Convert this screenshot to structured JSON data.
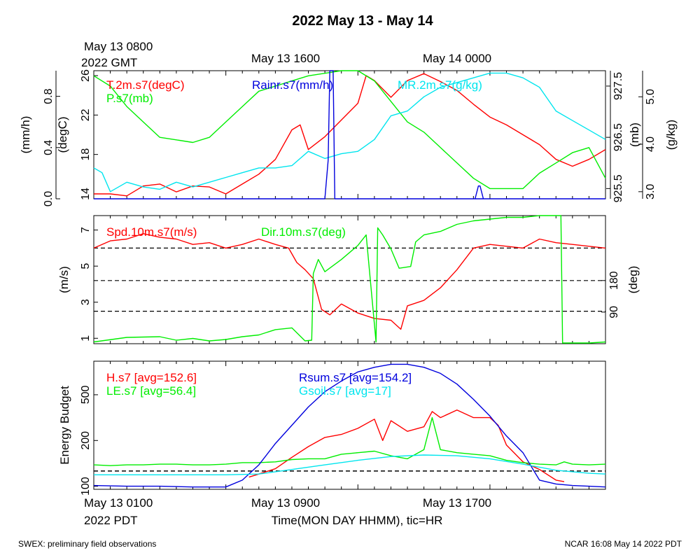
{
  "page": {
    "title": "2022 May 13 - May 14",
    "footer_left": "SWEX: preliminary field observations",
    "footer_right": "NCAR 16:08 May 14 2022 PDT"
  },
  "top_axis": {
    "start_label_1": "May 13 0800",
    "start_label_2": "2022 GMT",
    "labels": [
      "May 13 1600",
      "May 14 0000"
    ]
  },
  "bottom_axis": {
    "start_label_1": "May 13 0100",
    "start_label_2": "2022 PDT",
    "labels": [
      "May 13 0900",
      "May 13 1700"
    ],
    "xlabel": "Time(MON DAY HHMM), tic=HR"
  },
  "chart_data": [
    {
      "type": "line",
      "panel": "met",
      "x_unit": "hours since May 13 0100 PDT",
      "xlim": [
        0,
        31
      ],
      "axes": {
        "rain": {
          "label": "(mm/h)",
          "ticks": [
            "0.0",
            "0.4",
            "0.8"
          ],
          "tick_values": [
            0,
            0.4,
            0.8
          ],
          "ylim": [
            0,
            1.0
          ]
        },
        "temp": {
          "label": "(degC)",
          "ticks": [
            "14",
            "18",
            "22",
            "26"
          ],
          "tick_values": [
            14,
            18,
            22,
            26
          ],
          "ylim": [
            13.5,
            26.5
          ]
        },
        "pres": {
          "label": "(mb)",
          "ticks": [
            "925.5",
            "926.5",
            "927.5"
          ],
          "tick_values": [
            925.5,
            926.5,
            927.5
          ],
          "ylim": [
            925.3,
            927.8
          ]
        },
        "mr": {
          "label": "(g/kg)",
          "ticks": [
            "3.0",
            "4.0",
            "5.0"
          ],
          "tick_values": [
            3.0,
            4.0,
            5.0
          ],
          "ylim": [
            2.85,
            5.55
          ]
        }
      },
      "series": [
        {
          "name": "T.2m.s7(degC)",
          "color": "#ff0000",
          "axis": "temp",
          "x": [
            0,
            1,
            2,
            3,
            4,
            5,
            6,
            7,
            8,
            9,
            10,
            11,
            12,
            12.5,
            13,
            14,
            15,
            16,
            16.5,
            17,
            18,
            19,
            20,
            21,
            22,
            23,
            24,
            25,
            26,
            27,
            28,
            29,
            30,
            31
          ],
          "y": [
            14.0,
            14.0,
            13.8,
            14.8,
            15.0,
            14.2,
            14.8,
            14.7,
            14.0,
            15.0,
            16.0,
            17.5,
            20.5,
            21.0,
            18.5,
            19.8,
            21.5,
            23.2,
            26.0,
            25.5,
            23.8,
            25.5,
            26.2,
            25.4,
            24.5,
            23.1,
            21.8,
            21.0,
            20.0,
            19.0,
            17.5,
            16.8,
            17.5,
            18.5
          ]
        },
        {
          "name": "P.s7(mb)",
          "color": "#00ee00",
          "axis": "pres",
          "x": [
            0,
            1,
            2,
            3,
            4,
            5,
            6,
            7,
            8,
            9,
            10,
            11,
            12,
            13,
            14,
            15,
            16,
            17,
            18,
            19,
            20,
            21,
            22,
            23,
            24,
            25,
            26,
            27,
            28,
            29,
            30,
            31
          ],
          "y": [
            927.7,
            927.5,
            927.1,
            926.8,
            926.5,
            926.45,
            926.4,
            926.5,
            926.8,
            927.1,
            927.4,
            927.5,
            927.6,
            927.7,
            927.75,
            927.8,
            927.8,
            927.6,
            927.2,
            926.8,
            926.6,
            926.3,
            926.0,
            925.7,
            925.5,
            925.5,
            925.5,
            925.8,
            926.0,
            926.2,
            926.3,
            925.7
          ]
        },
        {
          "name": "MR.2m.s7(g/kg)",
          "color": "#00e5ee",
          "axis": "mr",
          "x": [
            0,
            0.5,
            1,
            2,
            3,
            4,
            5,
            6,
            7,
            8,
            9,
            10,
            11,
            12,
            13,
            14,
            15,
            16,
            17,
            18,
            19,
            20,
            21,
            22,
            23,
            24,
            25,
            26,
            27,
            28,
            29,
            30,
            31
          ],
          "y": [
            3.5,
            3.4,
            3.0,
            3.2,
            3.1,
            3.05,
            3.2,
            3.1,
            3.2,
            3.3,
            3.4,
            3.5,
            3.5,
            3.55,
            3.85,
            3.7,
            3.8,
            3.85,
            4.1,
            4.6,
            4.7,
            5.0,
            5.2,
            5.3,
            5.4,
            5.5,
            5.5,
            5.4,
            5.2,
            4.7,
            4.5,
            4.3,
            4.1
          ]
        },
        {
          "name": "Rainr.s7(mm/h)",
          "color": "#0000dd",
          "axis": "rain",
          "x": [
            0,
            14,
            14.2,
            14.3,
            14.5,
            14.6,
            30,
            31
          ],
          "y": [
            0,
            0,
            0.3,
            1.0,
            1.0,
            0,
            0,
            0
          ]
        },
        {
          "name": "",
          "color": "#0000dd",
          "axis": "rain",
          "x": [
            23.1,
            23.3,
            23.4,
            23.6
          ],
          "y": [
            0,
            0.1,
            0.1,
            0
          ]
        }
      ]
    },
    {
      "type": "line",
      "panel": "wind",
      "x_unit": "hours since May 13 0100 PDT",
      "xlim": [
        0,
        31
      ],
      "axes": {
        "spd": {
          "label": "(m/s)",
          "ticks": [
            "1",
            "3",
            "5",
            "7"
          ],
          "tick_values": [
            1,
            3,
            5,
            7
          ],
          "ylim": [
            0.7,
            7.8
          ]
        },
        "dir": {
          "label": "(deg)",
          "ticks": [
            "90",
            "180"
          ],
          "tick_values": [
            90,
            180
          ],
          "ylim": [
            0,
            365
          ]
        }
      },
      "reference_lines_spd": [
        2.5,
        4.2,
        6.0
      ],
      "series": [
        {
          "name": "Spd.10m.s7(m/s)",
          "color": "#ff0000",
          "axis": "spd",
          "x": [
            0,
            1,
            2,
            3,
            4,
            5,
            6,
            7,
            8,
            9,
            10,
            11,
            11.8,
            12.3,
            12.8,
            13.3,
            13.8,
            14.3,
            15,
            16,
            17,
            18,
            18.6,
            19,
            20,
            21,
            22,
            23,
            24,
            25,
            26,
            27,
            28,
            29,
            30,
            31
          ],
          "y": [
            6.0,
            6.4,
            6.5,
            6.8,
            6.6,
            6.5,
            6.2,
            6.3,
            6.0,
            6.2,
            6.5,
            6.2,
            6.0,
            5.2,
            4.8,
            4.3,
            2.6,
            2.3,
            2.9,
            2.4,
            2.1,
            2.0,
            1.5,
            2.8,
            3.1,
            3.8,
            4.8,
            6.0,
            6.2,
            6.1,
            6.0,
            6.5,
            6.3,
            6.2,
            6.1,
            6.0
          ]
        },
        {
          "name": "Dir.10m.s7(deg)",
          "color": "#00ee00",
          "axis": "dir",
          "x": [
            0,
            2,
            4,
            5,
            6,
            7,
            8,
            9,
            10,
            11,
            12,
            12.8,
            13.2,
            13.3,
            13.6,
            14,
            15,
            16,
            16.5,
            17.1,
            17.2,
            17.5,
            18,
            18.5,
            19.2,
            19.5,
            20,
            21,
            22,
            23,
            24,
            25,
            26,
            27,
            28,
            28.3,
            28.4,
            28.6,
            29,
            30,
            31
          ],
          "y": [
            5,
            18,
            20,
            10,
            15,
            8,
            12,
            20,
            25,
            40,
            45,
            8,
            10,
            200,
            240,
            205,
            240,
            280,
            310,
            5,
            330,
            310,
            270,
            215,
            220,
            290,
            310,
            320,
            340,
            350,
            355,
            360,
            360,
            365,
            365,
            365,
            2,
            2,
            2,
            2,
            5
          ]
        }
      ]
    },
    {
      "type": "line",
      "panel": "energy",
      "x_unit": "hours since May 13 0100 PDT",
      "xlim": [
        0,
        31
      ],
      "axes": {
        "en": {
          "label": "Energy Budget",
          "ticks": [
            "100",
            "200",
            "500"
          ],
          "tick_values": [
            -100,
            200,
            500
          ],
          "ylim": [
            -120,
            720
          ]
        }
      },
      "reference_lines_en": [
        0
      ],
      "series": [
        {
          "name": "H.s7 [avg=152.6]",
          "color": "#ff0000",
          "axis": "en",
          "x": [
            9.4,
            10,
            11,
            12,
            13,
            14,
            15,
            16,
            17,
            17.5,
            18,
            19,
            20,
            20.5,
            21,
            22,
            23,
            24,
            24.5,
            25,
            26,
            27,
            28,
            28.5
          ],
          "y": [
            -40,
            -20,
            15,
            90,
            160,
            220,
            240,
            280,
            340,
            200,
            330,
            260,
            290,
            390,
            350,
            400,
            350,
            350,
            300,
            170,
            60,
            10,
            -60,
            -70
          ]
        },
        {
          "name": "LE.s7 [avg=56.4]",
          "color": "#00ee00",
          "axis": "en",
          "x": [
            0,
            1,
            2,
            3,
            4,
            5,
            6,
            7,
            8,
            9,
            10,
            11,
            12,
            13,
            14,
            15,
            16,
            17,
            18,
            19,
            20,
            20.5,
            21,
            22,
            23,
            24,
            25,
            26,
            27,
            28,
            28.5,
            29,
            30,
            31
          ],
          "y": [
            40,
            35,
            40,
            40,
            45,
            45,
            40,
            40,
            45,
            55,
            55,
            60,
            75,
            80,
            80,
            110,
            120,
            130,
            100,
            80,
            140,
            350,
            140,
            120,
            110,
            100,
            70,
            55,
            45,
            40,
            60,
            45,
            40,
            45
          ]
        },
        {
          "name": "Rsum.s7 [avg=154.2]",
          "color": "#0000dd",
          "axis": "en",
          "x": [
            0,
            2,
            4,
            6,
            8,
            9,
            10,
            11,
            12,
            13,
            14,
            15,
            16,
            17,
            18,
            19,
            20,
            21,
            22,
            23,
            24,
            25,
            26,
            26.5,
            27,
            28,
            29,
            30,
            31
          ],
          "y": [
            -95,
            -100,
            -100,
            -105,
            -105,
            -60,
            40,
            180,
            300,
            420,
            520,
            590,
            650,
            680,
            700,
            700,
            680,
            640,
            570,
            470,
            360,
            230,
            120,
            30,
            -60,
            -85,
            -95,
            -100,
            -105
          ]
        },
        {
          "name": "Gsoil.s7 [avg=17]",
          "color": "#00e5ee",
          "axis": "en",
          "x": [
            0,
            2,
            4,
            6,
            8,
            10,
            12,
            14,
            16,
            18,
            20,
            22,
            24,
            26,
            28,
            30,
            31
          ],
          "y": [
            -25,
            -25,
            -25,
            -25,
            -25,
            -20,
            10,
            40,
            70,
            95,
            105,
            100,
            80,
            45,
            5,
            -15,
            -20
          ]
        }
      ]
    }
  ]
}
